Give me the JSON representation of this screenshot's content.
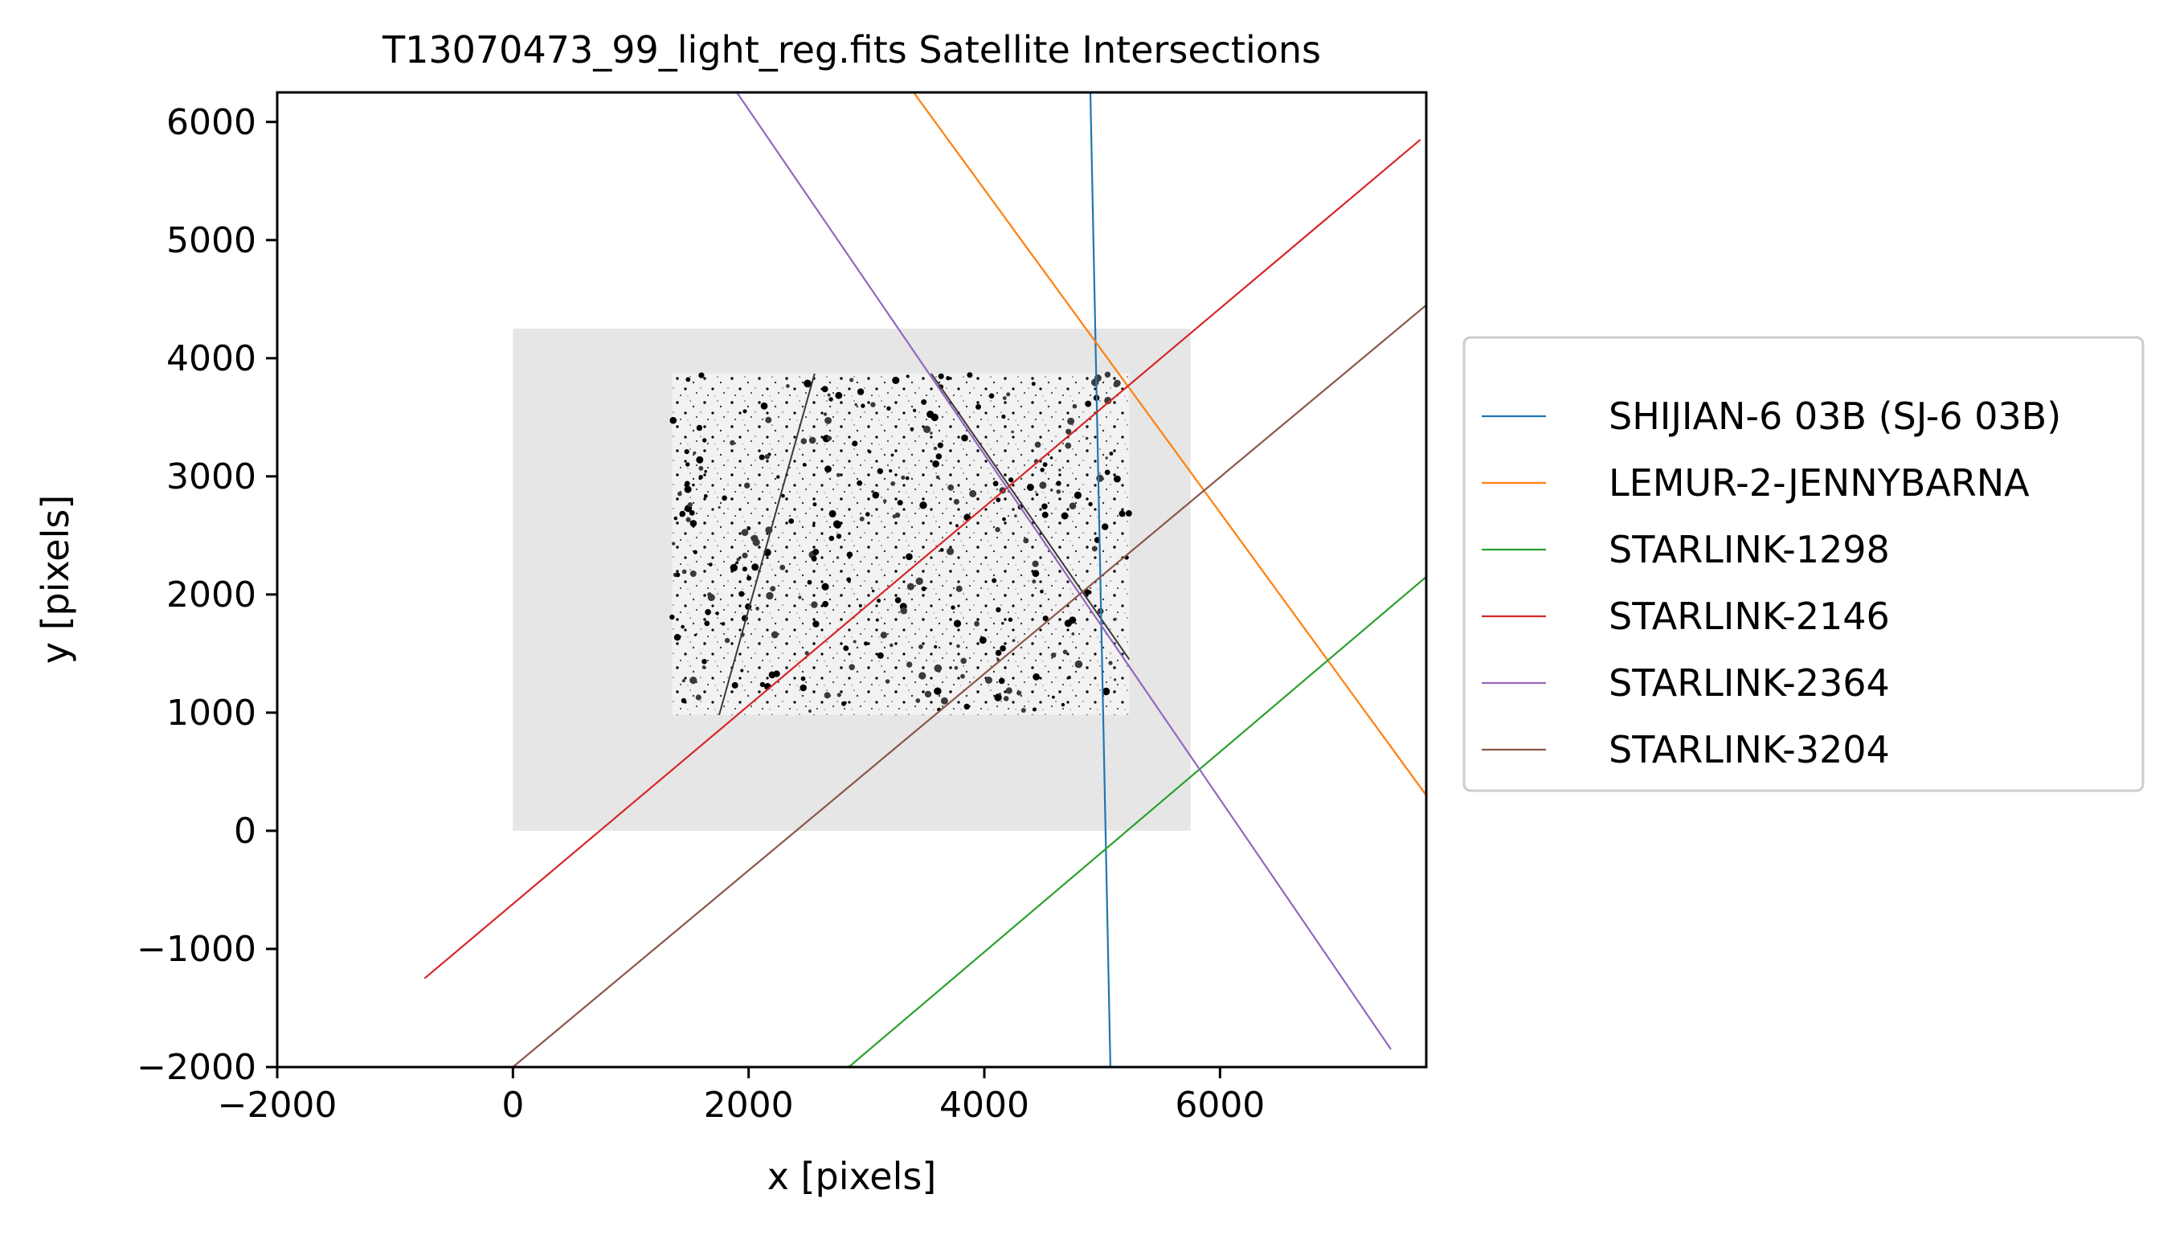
{
  "chart_data": {
    "type": "line",
    "title": "T13070473_99_light_reg.fits Satellite Intersections",
    "xlabel": "x [pixels]",
    "ylabel": "y [pixels]",
    "xlim": [
      -2000,
      7750
    ],
    "ylim": [
      -2000,
      6250
    ],
    "xticks": [
      -2000,
      0,
      2000,
      4000,
      6000
    ],
    "xtick_labels": [
      "−2000",
      "0",
      "2000",
      "4000",
      "6000"
    ],
    "yticks": [
      -2000,
      -1000,
      0,
      1000,
      2000,
      3000,
      4000,
      5000,
      6000
    ],
    "ytick_labels": [
      "−2000",
      "−1000",
      "0",
      "1000",
      "2000",
      "3000",
      "4000",
      "5000",
      "6000"
    ],
    "grid": false,
    "legend_position": "center-right-outside",
    "sensor_footprint": {
      "x": [
        0,
        5750
      ],
      "y": [
        0,
        4250
      ],
      "color": "#e6e6e6"
    },
    "image_region": {
      "x": [
        1350,
        5230
      ],
      "y": [
        980,
        3870
      ]
    },
    "image_streaks": [
      {
        "x": [
          1750,
          2560
        ],
        "y": [
          980,
          3870
        ]
      },
      {
        "x": [
          3550,
          5230
        ],
        "y": [
          3870,
          1450
        ]
      }
    ],
    "series": [
      {
        "name": "SHIJIAN-6 03B (SJ-6 03B)",
        "color": "#1f77b4",
        "x": [
          4900,
          5070
        ],
        "y": [
          6250,
          -2000
        ]
      },
      {
        "name": "LEMUR-2-JENNYBARNA",
        "color": "#ff7f0e",
        "x": [
          3400,
          7750
        ],
        "y": [
          6250,
          300
        ]
      },
      {
        "name": "STARLINK-1298",
        "color": "#2ca02c",
        "x": [
          2850,
          7750
        ],
        "y": [
          -2000,
          2150
        ]
      },
      {
        "name": "STARLINK-2146",
        "color": "#d62728",
        "x": [
          -750,
          7700
        ],
        "y": [
          -1250,
          5850
        ]
      },
      {
        "name": "STARLINK-2364",
        "color": "#9467bd",
        "x": [
          1900,
          7450
        ],
        "y": [
          6250,
          -1850
        ]
      },
      {
        "name": "STARLINK-3204",
        "color": "#8c564b",
        "x": [
          0,
          7750
        ],
        "y": [
          -2000,
          4450
        ]
      }
    ]
  }
}
